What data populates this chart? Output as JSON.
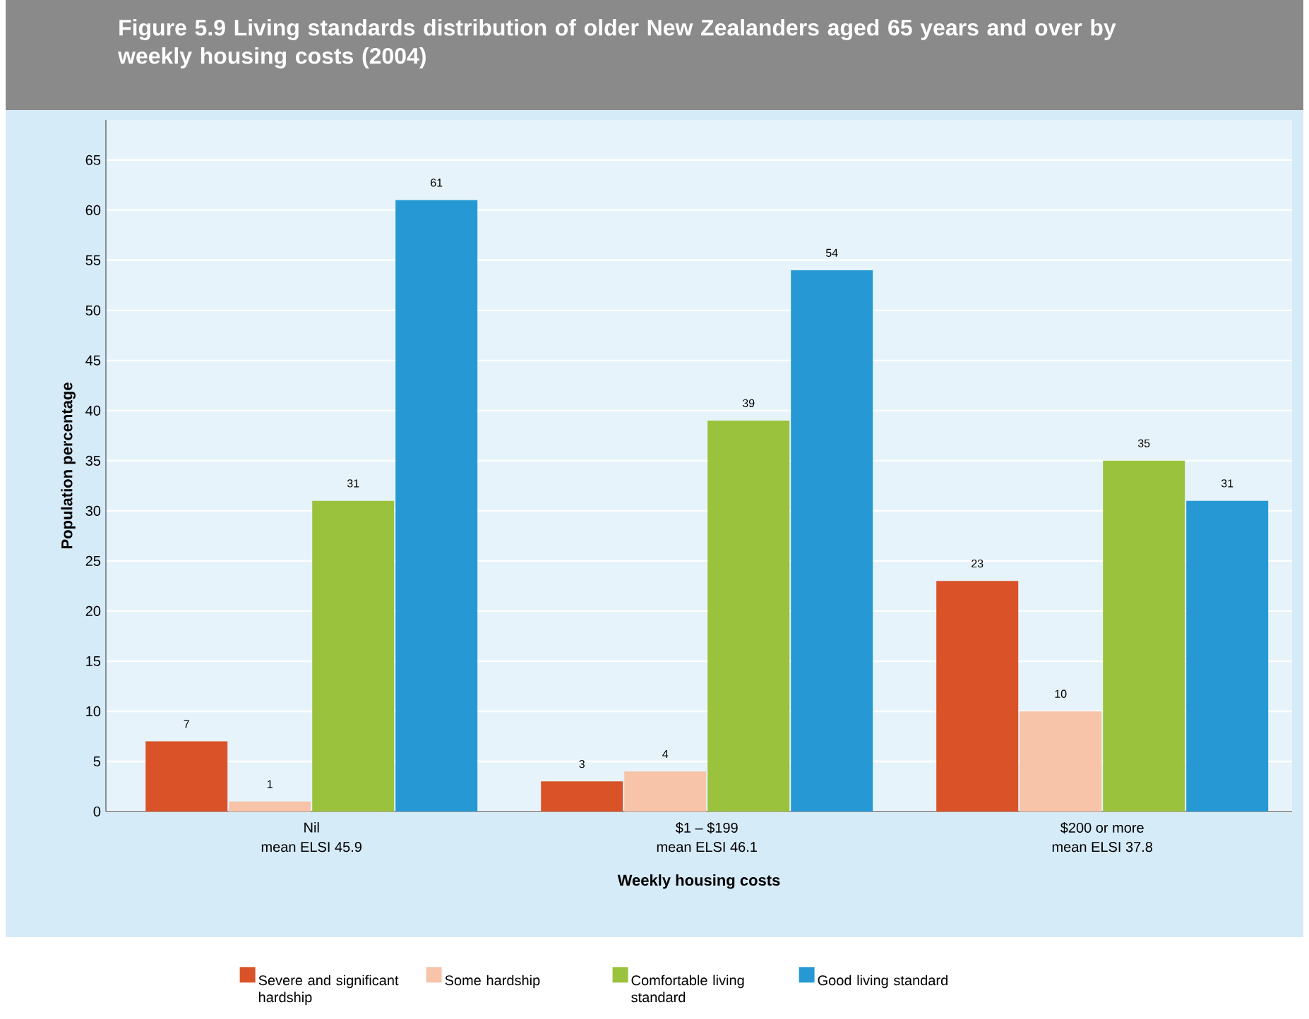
{
  "chart_data": {
    "type": "bar",
    "title": "Figure 5.9 Living standards distribution of older New Zealanders aged 65 years and over by weekly housing costs (2004)",
    "xlabel": "Weekly housing costs",
    "ylabel": "Population percentage",
    "categories": [
      "Nil",
      "$1 – $199",
      "$200 or more"
    ],
    "annotations": [
      "mean ELSI 45.9",
      "mean ELSI 46.1",
      "mean ELSI 37.8"
    ],
    "series": [
      {
        "name": "Severe and significant hardship",
        "color": "#d95228",
        "values": [
          7,
          3,
          23
        ]
      },
      {
        "name": "Some hardship",
        "color": "#f7c4a9",
        "values": [
          1,
          4,
          10
        ]
      },
      {
        "name": "Comfortable living standard",
        "color": "#9bc23c",
        "values": [
          31,
          39,
          35
        ]
      },
      {
        "name": "Good living standard",
        "color": "#2699d4",
        "values": [
          61,
          54,
          31
        ]
      }
    ],
    "ylim": [
      0,
      69
    ],
    "yticks": [
      0,
      5,
      10,
      15,
      20,
      25,
      30,
      35,
      40,
      45,
      50,
      55,
      60,
      65
    ],
    "grid": "y",
    "legend": "bottom",
    "data_labels": true
  }
}
